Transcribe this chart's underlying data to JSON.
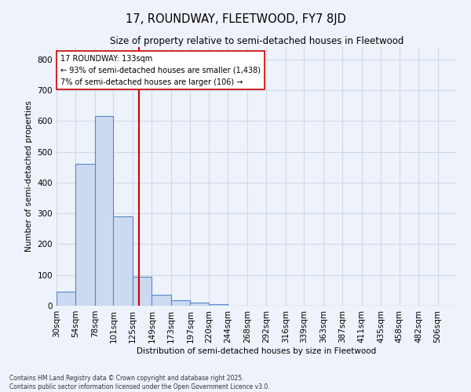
{
  "title": "17, ROUNDWAY, FLEETWOOD, FY7 8JD",
  "subtitle": "Size of property relative to semi-detached houses in Fleetwood",
  "xlabel": "Distribution of semi-detached houses by size in Fleetwood",
  "ylabel": "Number of semi-detached properties",
  "footnote1": "Contains HM Land Registry data © Crown copyright and database right 2025.",
  "footnote2": "Contains public sector information licensed under the Open Government Licence v3.0.",
  "bin_labels": [
    "30sqm",
    "54sqm",
    "78sqm",
    "101sqm",
    "125sqm",
    "149sqm",
    "173sqm",
    "197sqm",
    "220sqm",
    "244sqm",
    "268sqm",
    "292sqm",
    "316sqm",
    "339sqm",
    "363sqm",
    "387sqm",
    "411sqm",
    "435sqm",
    "458sqm",
    "482sqm",
    "506sqm"
  ],
  "bin_values": [
    46,
    460,
    617,
    289,
    95,
    36,
    17,
    9,
    5,
    0,
    0,
    0,
    0,
    0,
    0,
    0,
    0,
    0,
    0,
    0,
    0
  ],
  "bin_edges": [
    30,
    54,
    78,
    101,
    125,
    149,
    173,
    197,
    220,
    244,
    268,
    292,
    316,
    339,
    363,
    387,
    411,
    435,
    458,
    482,
    506
  ],
  "property_size": 133,
  "bar_facecolor": "#ccd9f0",
  "bar_edgecolor": "#5588cc",
  "vline_color": "#cc0000",
  "annotation_line1": "17 ROUNDWAY: 133sqm",
  "annotation_line2": "← 93% of semi-detached houses are smaller (1,438)",
  "annotation_line3": "7% of semi-detached houses are larger (106) →",
  "annotation_box_edgecolor": "#cc0000",
  "annotation_box_facecolor": "#ffffff",
  "grid_color": "#d0d8e8",
  "background_color": "#eef2fa",
  "ylim": [
    0,
    840
  ],
  "yticks": [
    0,
    100,
    200,
    300,
    400,
    500,
    600,
    700,
    800
  ]
}
